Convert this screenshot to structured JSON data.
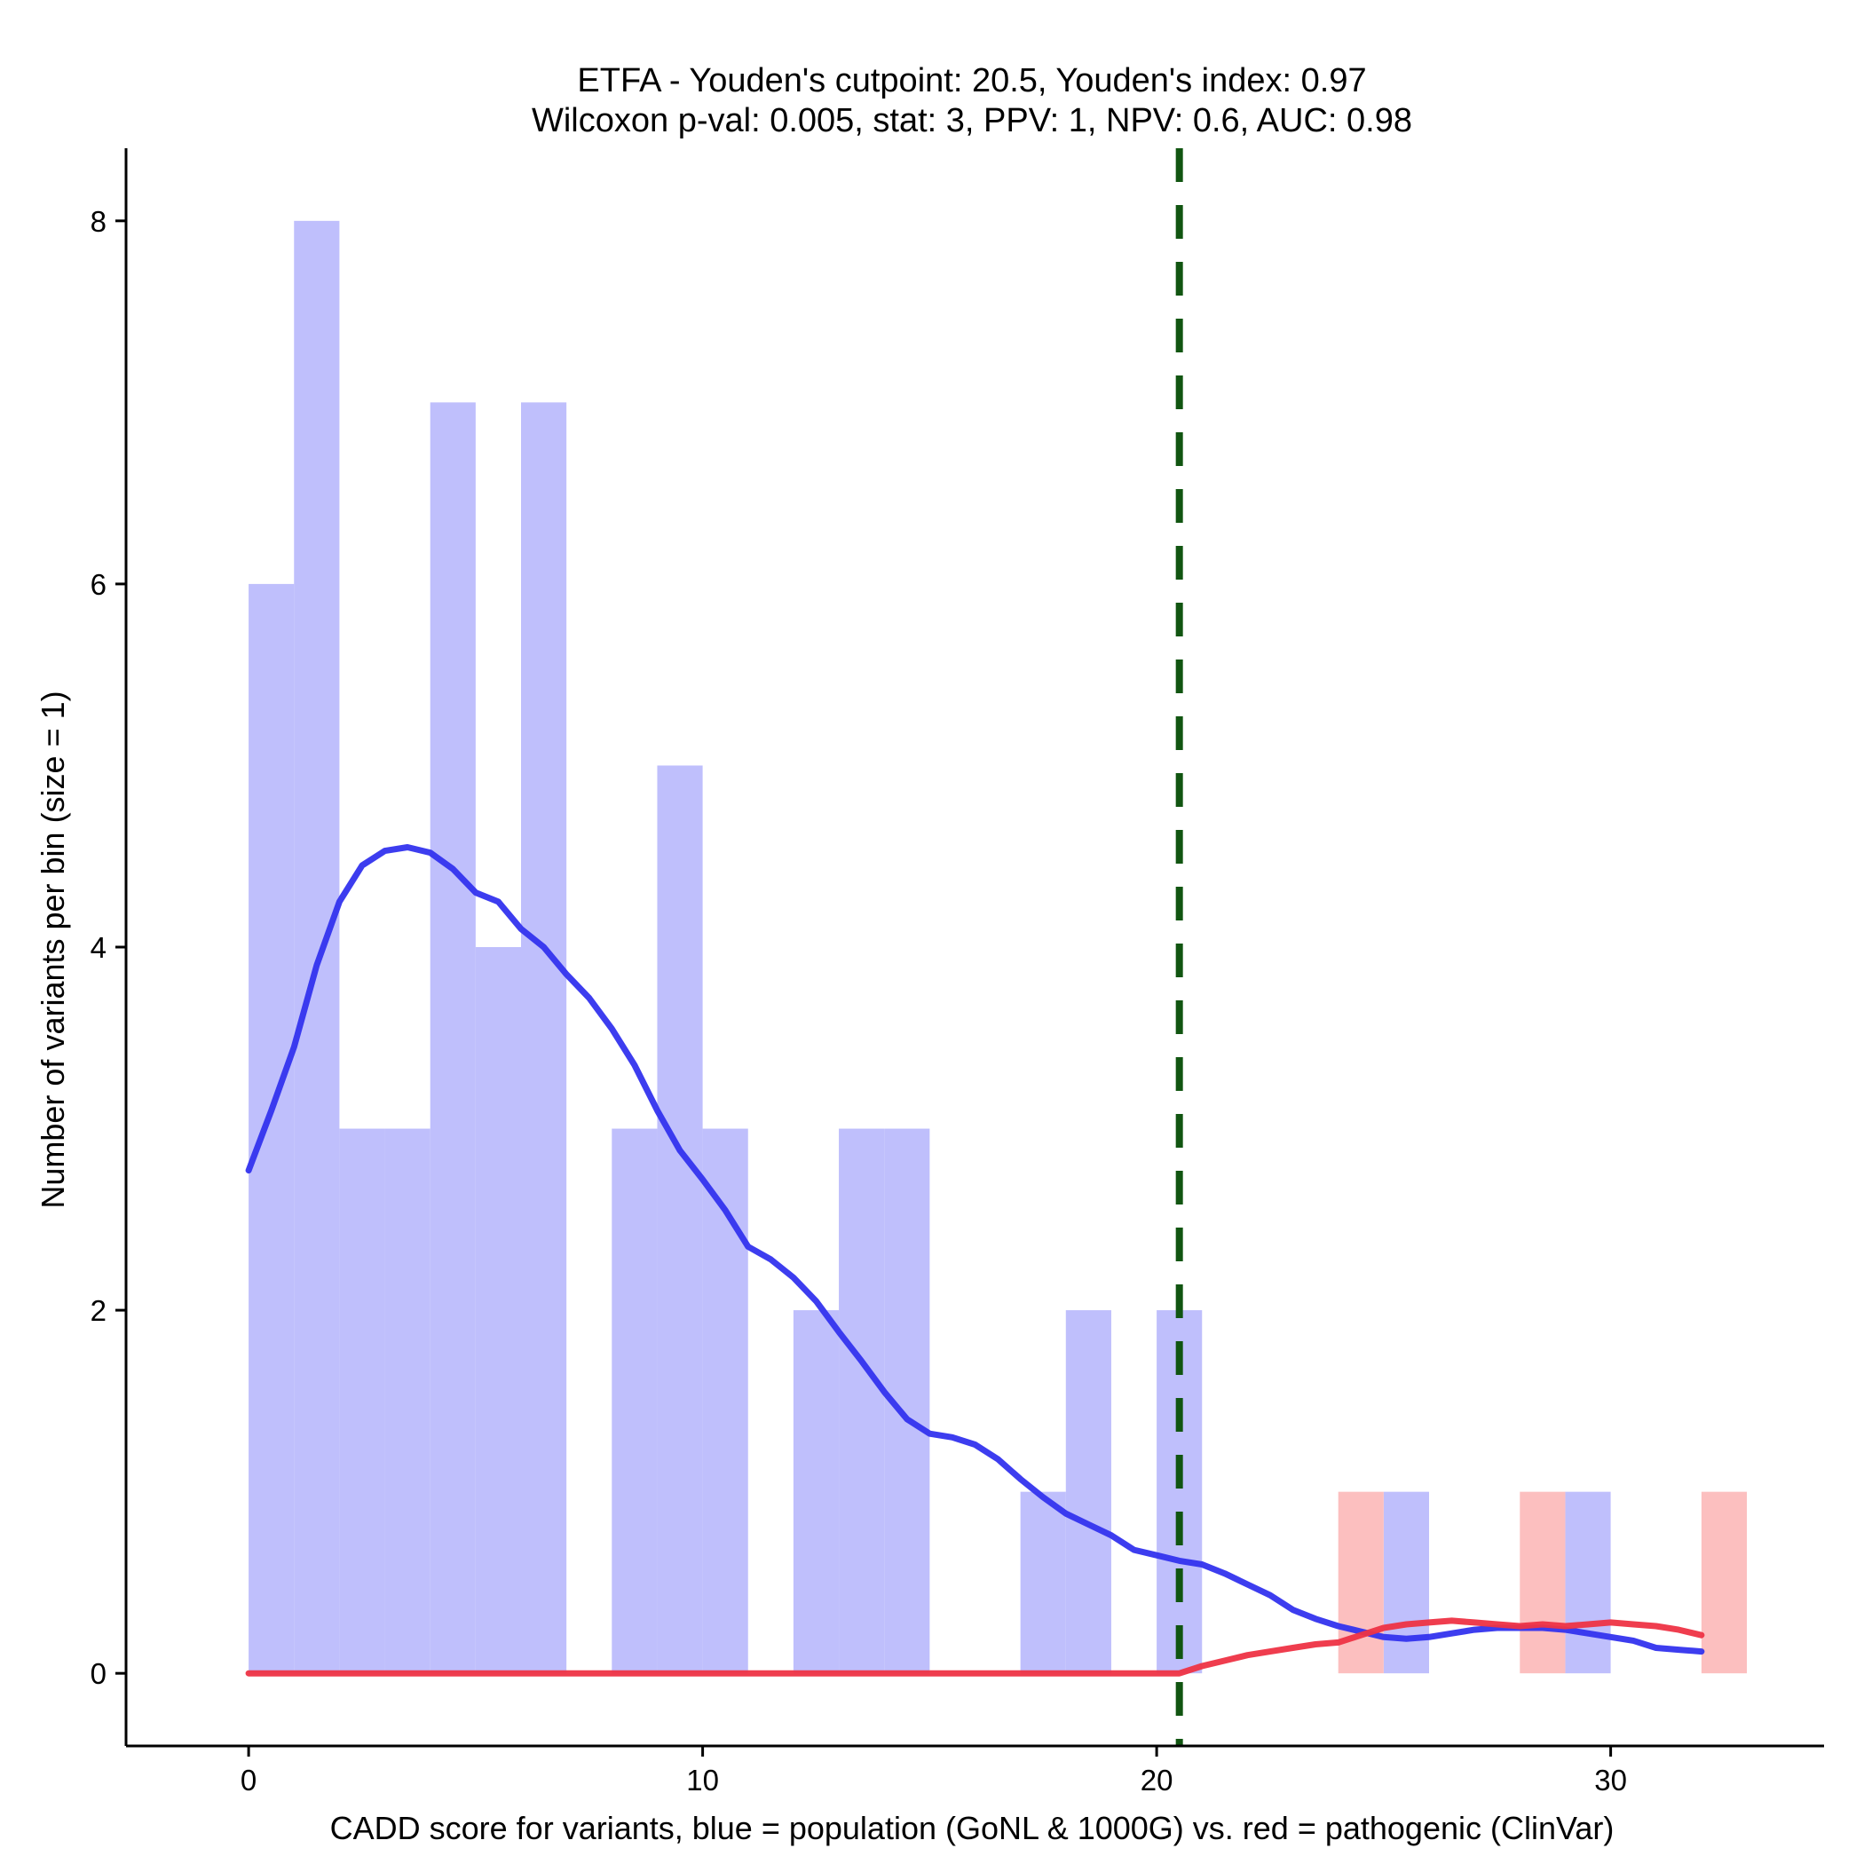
{
  "chart_data": {
    "type": "bar",
    "title_line1": "ETFA - Youden's cutpoint: 20.5, Youden's index: 0.97",
    "title_line2": "Wilcoxon p-val: 0.005, stat: 3, PPV: 1, NPV: 0.6, AUC: 0.98",
    "xlabel": "CADD score for variants, blue = population (GoNL & 1000G) vs. red = pathogenic (ClinVar)",
    "ylabel": "Number of variants per bin (size = 1)",
    "xlim": [
      -2.7,
      34.7
    ],
    "ylim": [
      -0.4,
      8.4
    ],
    "x_ticks": [
      0,
      10,
      20,
      30
    ],
    "y_ticks": [
      0,
      2,
      4,
      6,
      8
    ],
    "bin_size": 1,
    "grid": false,
    "series": [
      {
        "color": "#bfbffc",
        "bins": [
          {
            "x0": 0,
            "x1": 1,
            "count": 6
          },
          {
            "x0": 1,
            "x1": 2,
            "count": 8
          },
          {
            "x0": 2,
            "x1": 3,
            "count": 3
          },
          {
            "x0": 3,
            "x1": 4,
            "count": 3
          },
          {
            "x0": 4,
            "x1": 5,
            "count": 7
          },
          {
            "x0": 5,
            "x1": 6,
            "count": 4
          },
          {
            "x0": 6,
            "x1": 7,
            "count": 7
          },
          {
            "x0": 8,
            "x1": 9,
            "count": 3
          },
          {
            "x0": 9,
            "x1": 10,
            "count": 5
          },
          {
            "x0": 10,
            "x1": 11,
            "count": 3
          },
          {
            "x0": 12,
            "x1": 13,
            "count": 2
          },
          {
            "x0": 13,
            "x1": 14,
            "count": 3
          },
          {
            "x0": 14,
            "x1": 15,
            "count": 3
          },
          {
            "x0": 17,
            "x1": 18,
            "count": 1
          },
          {
            "x0": 18,
            "x1": 19,
            "count": 2
          },
          {
            "x0": 20,
            "x1": 21,
            "count": 2
          },
          {
            "x0": 25,
            "x1": 26,
            "count": 1
          },
          {
            "x0": 29,
            "x1": 30,
            "count": 1
          }
        ],
        "density_color": "#3333ee",
        "density": [
          [
            0,
            2.77
          ],
          [
            0.5,
            3.1
          ],
          [
            1,
            3.45
          ],
          [
            1.5,
            3.9
          ],
          [
            2,
            4.25
          ],
          [
            2.5,
            4.45
          ],
          [
            3,
            4.53
          ],
          [
            3.5,
            4.55
          ],
          [
            4,
            4.52
          ],
          [
            4.5,
            4.43
          ],
          [
            5,
            4.3
          ],
          [
            5.5,
            4.25
          ],
          [
            6,
            4.1
          ],
          [
            6.5,
            4.0
          ],
          [
            7,
            3.85
          ],
          [
            7.5,
            3.72
          ],
          [
            8,
            3.55
          ],
          [
            8.5,
            3.35
          ],
          [
            9,
            3.1
          ],
          [
            9.5,
            2.88
          ],
          [
            10,
            2.72
          ],
          [
            10.5,
            2.55
          ],
          [
            11,
            2.35
          ],
          [
            11.5,
            2.28
          ],
          [
            12,
            2.18
          ],
          [
            12.5,
            2.05
          ],
          [
            13,
            1.88
          ],
          [
            13.5,
            1.72
          ],
          [
            14,
            1.55
          ],
          [
            14.5,
            1.4
          ],
          [
            15,
            1.32
          ],
          [
            15.5,
            1.3
          ],
          [
            16,
            1.26
          ],
          [
            16.5,
            1.18
          ],
          [
            17,
            1.07
          ],
          [
            17.5,
            0.97
          ],
          [
            18,
            0.88
          ],
          [
            18.5,
            0.82
          ],
          [
            19,
            0.76
          ],
          [
            19.5,
            0.68
          ],
          [
            20,
            0.65
          ],
          [
            20.5,
            0.62
          ],
          [
            21,
            0.6
          ],
          [
            21.5,
            0.55
          ],
          [
            22,
            0.49
          ],
          [
            22.5,
            0.43
          ],
          [
            23,
            0.35
          ],
          [
            23.5,
            0.3
          ],
          [
            24,
            0.26
          ],
          [
            24.5,
            0.23
          ],
          [
            25,
            0.2
          ],
          [
            25.5,
            0.19
          ],
          [
            26,
            0.2
          ],
          [
            26.5,
            0.22
          ],
          [
            27,
            0.24
          ],
          [
            27.5,
            0.25
          ],
          [
            28,
            0.25
          ],
          [
            28.5,
            0.25
          ],
          [
            29,
            0.24
          ],
          [
            29.5,
            0.22
          ],
          [
            30,
            0.2
          ],
          [
            30.5,
            0.18
          ],
          [
            31,
            0.14
          ],
          [
            31.5,
            0.13
          ],
          [
            32,
            0.12
          ]
        ]
      },
      {
        "color": "#fcbfbf",
        "bins": [
          {
            "x0": 24,
            "x1": 25,
            "count": 1
          },
          {
            "x0": 28,
            "x1": 29,
            "count": 1
          },
          {
            "x0": 32,
            "x1": 33,
            "count": 1
          }
        ],
        "density_color": "#ee3344",
        "density": [
          [
            0,
            0.0
          ],
          [
            5,
            0.0
          ],
          [
            10,
            0.0
          ],
          [
            15,
            0.0
          ],
          [
            20,
            0.0
          ],
          [
            20.5,
            0.0
          ],
          [
            21,
            0.04
          ],
          [
            21.5,
            0.07
          ],
          [
            22,
            0.1
          ],
          [
            22.5,
            0.12
          ],
          [
            23,
            0.14
          ],
          [
            23.5,
            0.16
          ],
          [
            24,
            0.17
          ],
          [
            24.5,
            0.21
          ],
          [
            25,
            0.25
          ],
          [
            25.5,
            0.27
          ],
          [
            26,
            0.28
          ],
          [
            26.5,
            0.29
          ],
          [
            27,
            0.28
          ],
          [
            27.5,
            0.27
          ],
          [
            28,
            0.26
          ],
          [
            28.5,
            0.27
          ],
          [
            29,
            0.26
          ],
          [
            29.5,
            0.27
          ],
          [
            30,
            0.28
          ],
          [
            30.5,
            0.27
          ],
          [
            31,
            0.26
          ],
          [
            31.5,
            0.24
          ],
          [
            32,
            0.21
          ]
        ]
      }
    ],
    "cutpoint": {
      "x": 20.5,
      "color": "#115511",
      "style": "dashed"
    }
  }
}
